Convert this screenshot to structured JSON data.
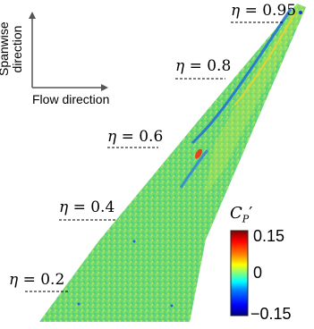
{
  "stations": [
    {
      "symbol": "η",
      "text": " = 0.95"
    },
    {
      "symbol": "η",
      "text": " = 0.8"
    },
    {
      "symbol": "η",
      "text": " = 0.6"
    },
    {
      "symbol": "η",
      "text": " = 0.4"
    },
    {
      "symbol": "η",
      "text": " = 0.2"
    }
  ],
  "axes": {
    "flow_label": "Flow direction",
    "spanwise_label_line1": "Spanwise",
    "spanwise_label_line2": "direction"
  },
  "colorbar": {
    "title_main": "C",
    "title_sub": "P",
    "title_prime": "′",
    "max_label": "0.15",
    "mid_label": "0",
    "min_label": "−0.15",
    "colors": [
      "#00007f",
      "#0000ff",
      "#0080ff",
      "#00ffff",
      "#80ff80",
      "#ffff00",
      "#ff8000",
      "#ff0000",
      "#7f0000"
    ]
  },
  "field": {
    "base_color": "#6fd86a"
  }
}
